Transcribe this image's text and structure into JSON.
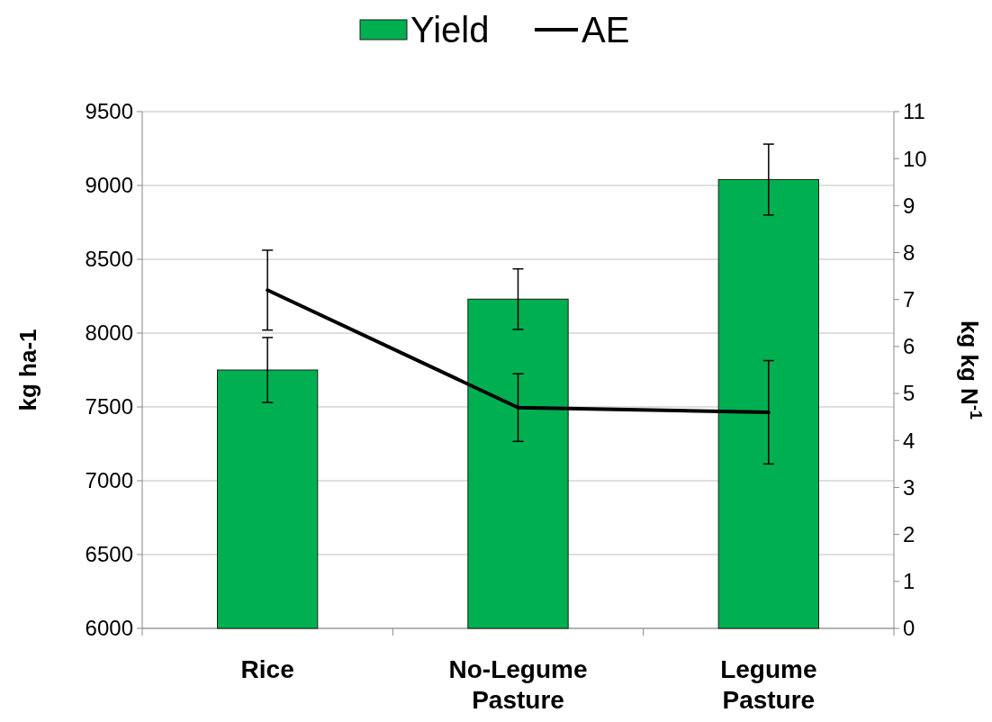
{
  "chart_data": {
    "type": "bar",
    "categories": [
      "Rice",
      "No-Legume Pasture",
      "Legume Pasture"
    ],
    "series": [
      {
        "name": "Yield",
        "color": "#00b050",
        "values": [
          7750,
          8230,
          9040
        ],
        "errors": [
          220,
          205,
          240
        ]
      },
      {
        "name": "AE",
        "type": "line",
        "color": "#000000",
        "axis": "y2",
        "values": [
          7.2,
          4.7,
          4.6
        ],
        "errors": [
          0.85,
          0.72,
          1.1
        ]
      }
    ],
    "ylabel": "kg ha-1",
    "y2label": "kg kg N$^{-1}$",
    "ylim": [
      6000,
      9500
    ],
    "yticks": [
      6000,
      6500,
      7000,
      7500,
      8000,
      8500,
      9000,
      9500
    ],
    "y2lim": [
      0,
      11
    ],
    "y2ticks": [
      0,
      1,
      2,
      3,
      4,
      5,
      6,
      7,
      8,
      9,
      10,
      11
    ],
    "grid": "y",
    "legend": "top",
    "marker": "none",
    "line_style": "solid"
  }
}
